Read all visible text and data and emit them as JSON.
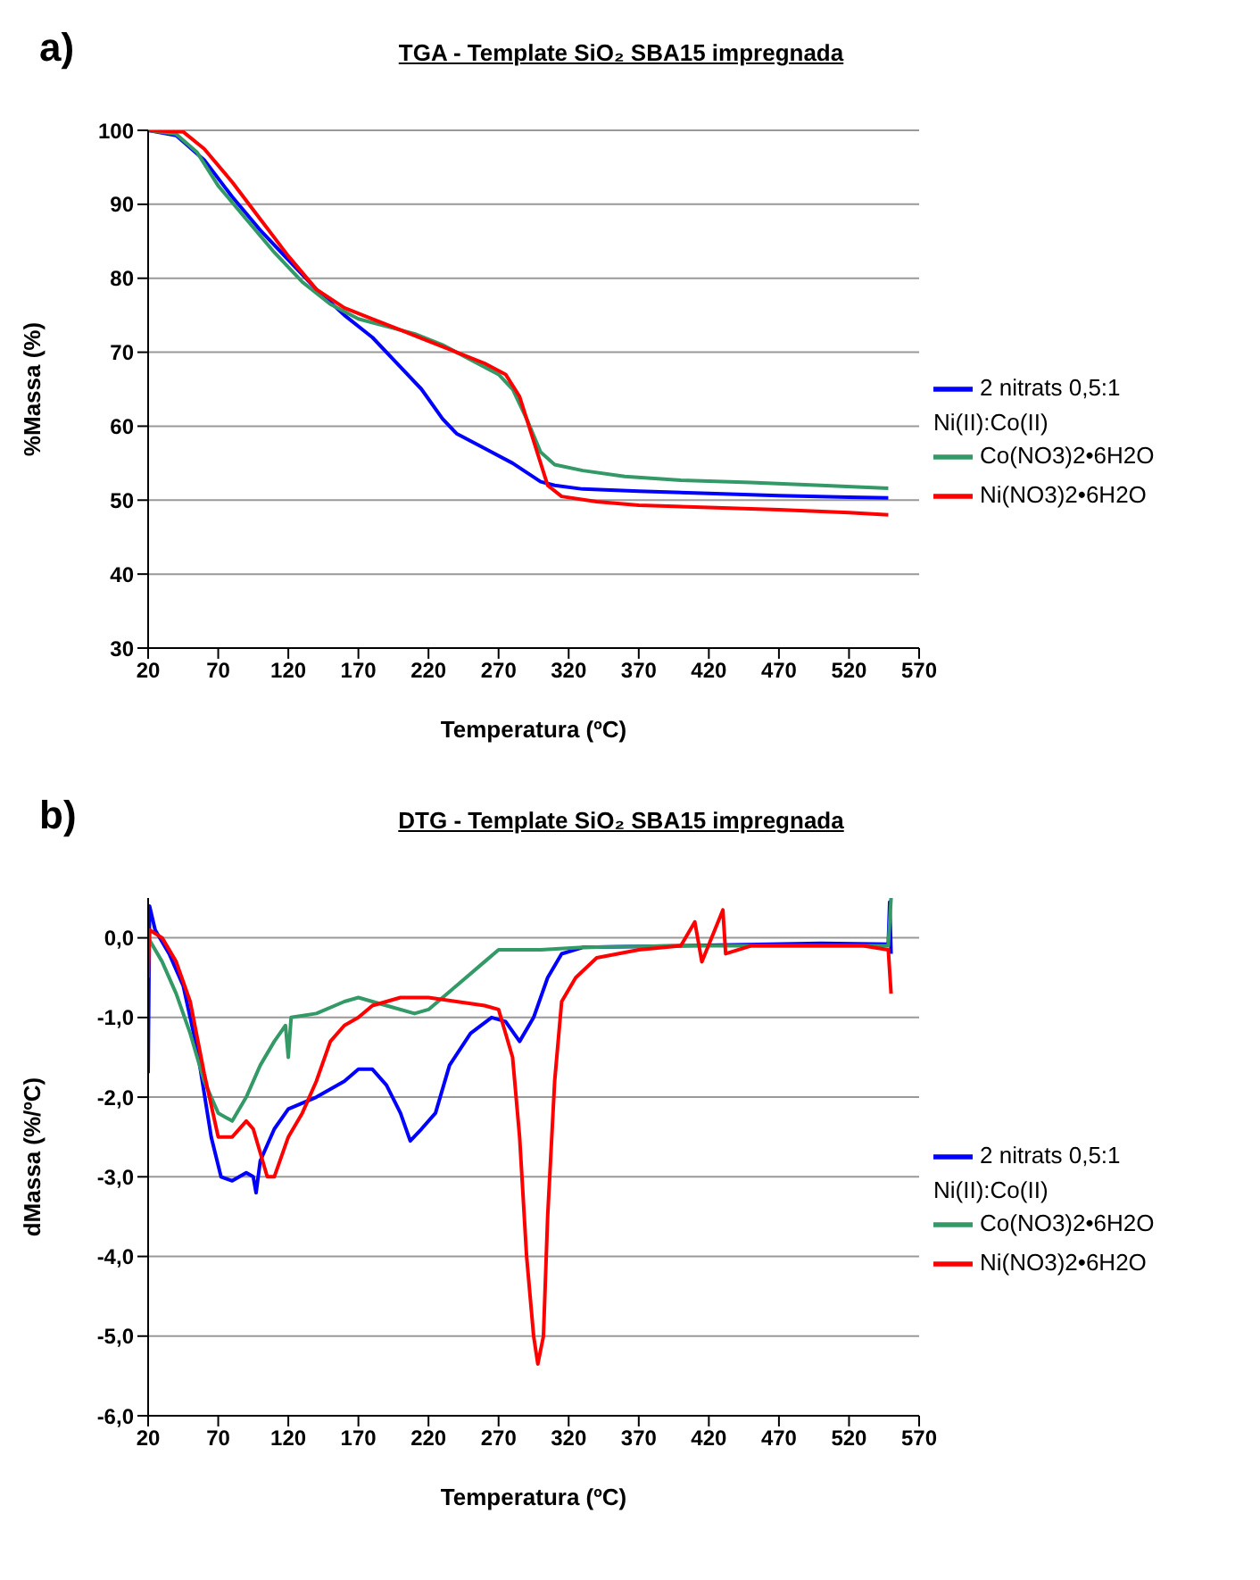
{
  "chart_data": [
    {
      "type": "line",
      "title": "TGA - Template SiO₂ SBA15 impregnada",
      "xlabel": "Temperatura (ºC)",
      "ylabel": "%Massa  (%)",
      "annotations": [
        "a)"
      ],
      "xlim": [
        20,
        570
      ],
      "xticks": [
        20,
        70,
        120,
        170,
        220,
        270,
        320,
        370,
        420,
        470,
        520,
        570
      ],
      "ylim": [
        30,
        100
      ],
      "yticks": [
        30,
        40,
        50,
        60,
        70,
        80,
        90,
        100
      ],
      "grid": "y",
      "legend": "right",
      "marker": "none",
      "line_style": "solid",
      "series": [
        {
          "name": "Ni(NO3)2•6H2O",
          "color": "#ff0000",
          "x": [
            20,
            45,
            60,
            80,
            100,
            120,
            140,
            160,
            180,
            200,
            220,
            240,
            260,
            275,
            285,
            295,
            305,
            315,
            340,
            370,
            420,
            470,
            520,
            548
          ],
          "values": [
            100,
            99.8,
            97.5,
            93,
            88,
            83,
            78.5,
            76,
            74.5,
            73,
            71.5,
            70,
            68.5,
            67,
            64,
            58,
            52,
            50.5,
            49.8,
            49.3,
            49,
            48.7,
            48.3,
            48
          ]
        },
        {
          "name": "Co(NO3)2•6H2O",
          "color": "#339966",
          "x": [
            20,
            40,
            55,
            70,
            90,
            110,
            130,
            150,
            170,
            190,
            210,
            230,
            250,
            270,
            280,
            290,
            300,
            310,
            330,
            360,
            400,
            450,
            500,
            548
          ],
          "values": [
            100,
            99.5,
            97,
            92.5,
            88,
            83.5,
            79.5,
            76.5,
            74.5,
            73.5,
            72.5,
            71,
            69,
            67,
            65,
            61,
            56.5,
            54.8,
            54,
            53.2,
            52.7,
            52.4,
            52,
            51.6
          ]
        },
        {
          "name": "2 nitrats 0,5:1 Ni(II):Co(II)",
          "color": "#0000ff",
          "x": [
            20,
            40,
            60,
            80,
            100,
            120,
            140,
            160,
            180,
            200,
            215,
            230,
            240,
            260,
            280,
            300,
            310,
            330,
            370,
            420,
            470,
            520,
            548
          ],
          "values": [
            100,
            99.3,
            96,
            91,
            86.5,
            82.5,
            78.5,
            75,
            72,
            68,
            65,
            61,
            59,
            57,
            55,
            52.5,
            52,
            51.5,
            51.2,
            50.9,
            50.6,
            50.4,
            50.3
          ]
        }
      ]
    },
    {
      "type": "line",
      "title": "DTG - Template SiO₂ SBA15 impregnada",
      "xlabel": "Temperatura (ºC)",
      "ylabel": "dMassa  (%/ºC)",
      "annotations": [
        "b)"
      ],
      "xlim": [
        20,
        570
      ],
      "xticks": [
        20,
        70,
        120,
        170,
        220,
        270,
        320,
        370,
        420,
        470,
        520,
        570
      ],
      "ylim": [
        -6,
        0.5
      ],
      "yticks": [
        {
          "value": -6,
          "label": "-6,0"
        },
        {
          "value": -5,
          "label": "-5,0"
        },
        {
          "value": -4,
          "label": "-4,0"
        },
        {
          "value": -3,
          "label": "-3,0"
        },
        {
          "value": -2,
          "label": "-2,0"
        },
        {
          "value": -1,
          "label": "-1,0"
        },
        {
          "value": 0,
          "label": "0,0"
        }
      ],
      "grid": "y",
      "legend": "right",
      "marker": "none",
      "line_style": "solid",
      "series": [
        {
          "name": "Ni(NO3)2•6H2O",
          "color": "#ff0000",
          "x": [
            20,
            21,
            30,
            40,
            50,
            60,
            70,
            80,
            90,
            95,
            100,
            105,
            110,
            120,
            130,
            140,
            150,
            160,
            170,
            180,
            200,
            220,
            240,
            260,
            270,
            280,
            285,
            290,
            295,
            298,
            302,
            305,
            310,
            315,
            325,
            340,
            370,
            400,
            410,
            415,
            430,
            432,
            450,
            500,
            530,
            548,
            550
          ],
          "values": [
            -0.5,
            0.1,
            0,
            -0.3,
            -0.8,
            -1.7,
            -2.5,
            -2.5,
            -2.3,
            -2.4,
            -2.7,
            -3,
            -3,
            -2.5,
            -2.2,
            -1.8,
            -1.3,
            -1.1,
            -1,
            -0.85,
            -0.75,
            -0.75,
            -0.8,
            -0.85,
            -0.9,
            -1.5,
            -2.5,
            -4,
            -5,
            -5.35,
            -5,
            -3.5,
            -1.8,
            -0.8,
            -0.5,
            -0.25,
            -0.15,
            -0.1,
            0.2,
            -0.3,
            0.35,
            -0.2,
            -0.1,
            -0.1,
            -0.1,
            -0.15,
            -0.7
          ]
        },
        {
          "name": "Co(NO3)2•6H2O",
          "color": "#339966",
          "x": [
            20,
            30,
            40,
            50,
            60,
            70,
            80,
            90,
            100,
            110,
            118,
            120,
            122,
            140,
            160,
            170,
            190,
            210,
            220,
            240,
            260,
            270,
            300,
            330,
            400,
            500,
            548,
            550
          ],
          "values": [
            0,
            -0.3,
            -0.7,
            -1.2,
            -1.8,
            -2.2,
            -2.3,
            -2,
            -1.6,
            -1.3,
            -1.1,
            -1.5,
            -1,
            -0.95,
            -0.8,
            -0.75,
            -0.85,
            -0.95,
            -0.9,
            -0.6,
            -0.3,
            -0.15,
            -0.15,
            -0.12,
            -0.1,
            -0.1,
            -0.1,
            0.5
          ]
        },
        {
          "name": "2 nitrats 0,5:1 Ni(II):Co(II)",
          "color": "#0000ff",
          "x": [
            20,
            21,
            25,
            35,
            45,
            55,
            65,
            72,
            80,
            90,
            95,
            97,
            100,
            110,
            120,
            140,
            160,
            170,
            180,
            190,
            200,
            207,
            215,
            225,
            235,
            250,
            265,
            275,
            285,
            295,
            305,
            315,
            330,
            400,
            500,
            548,
            549,
            550
          ],
          "values": [
            -1.7,
            0.4,
            0.1,
            -0.2,
            -0.6,
            -1.4,
            -2.5,
            -3,
            -3.05,
            -2.95,
            -3,
            -3.2,
            -2.8,
            -2.4,
            -2.15,
            -2,
            -1.8,
            -1.65,
            -1.65,
            -1.85,
            -2.2,
            -2.55,
            -2.4,
            -2.2,
            -1.6,
            -1.2,
            -1,
            -1.05,
            -1.3,
            -1,
            -0.5,
            -0.2,
            -0.12,
            -0.1,
            -0.07,
            -0.08,
            0.45,
            -0.2
          ]
        }
      ]
    }
  ]
}
